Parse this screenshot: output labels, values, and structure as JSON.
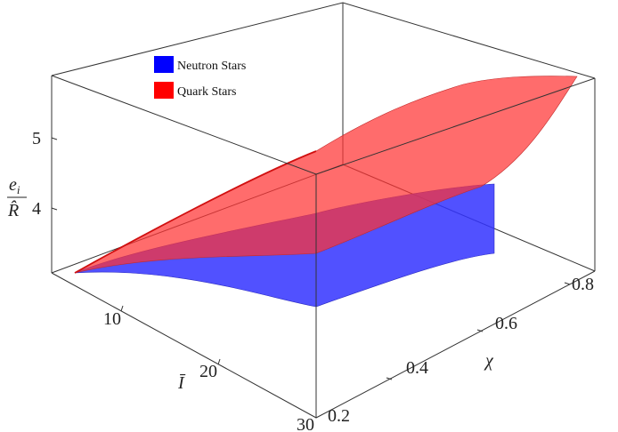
{
  "chart_data": {
    "type": "surface3d",
    "xlabel_symbol": "Ī",
    "ylabel_symbol": "χ",
    "zlabel_num": "e",
    "zlabel_num_sub": "i",
    "zlabel_den": "R̂",
    "x_ticks": [
      "10",
      "20",
      "30"
    ],
    "y_ticks": [
      "0.2",
      "0.4",
      "0.6",
      "0.8"
    ],
    "z_ticks": [
      "4",
      "5"
    ],
    "x_range": [
      5,
      30
    ],
    "y_range": [
      0.17,
      0.82
    ],
    "z_range": [
      3.1,
      5.7
    ],
    "legend": {
      "placement": "top-left",
      "items": [
        {
          "label": "Neutron Stars",
          "color": "#0000ff"
        },
        {
          "label": "Quark Stars",
          "color": "#ff0000"
        }
      ]
    },
    "series": [
      {
        "name": "Neutron Stars",
        "color": "#3333ff",
        "corners": {
          "I5_chi_low": 3.2,
          "I5_chi_high": 4.4,
          "I30_chi_low": 3.15,
          "I30_chi_high": 4.35
        }
      },
      {
        "name": "Quark Stars",
        "color": "#ff3333",
        "corners": {
          "I5_chi_low": 3.2,
          "I5_chi_high": 5.6,
          "I30_chi_low": 3.9,
          "I30_chi_high": 5.7
        }
      }
    ]
  }
}
